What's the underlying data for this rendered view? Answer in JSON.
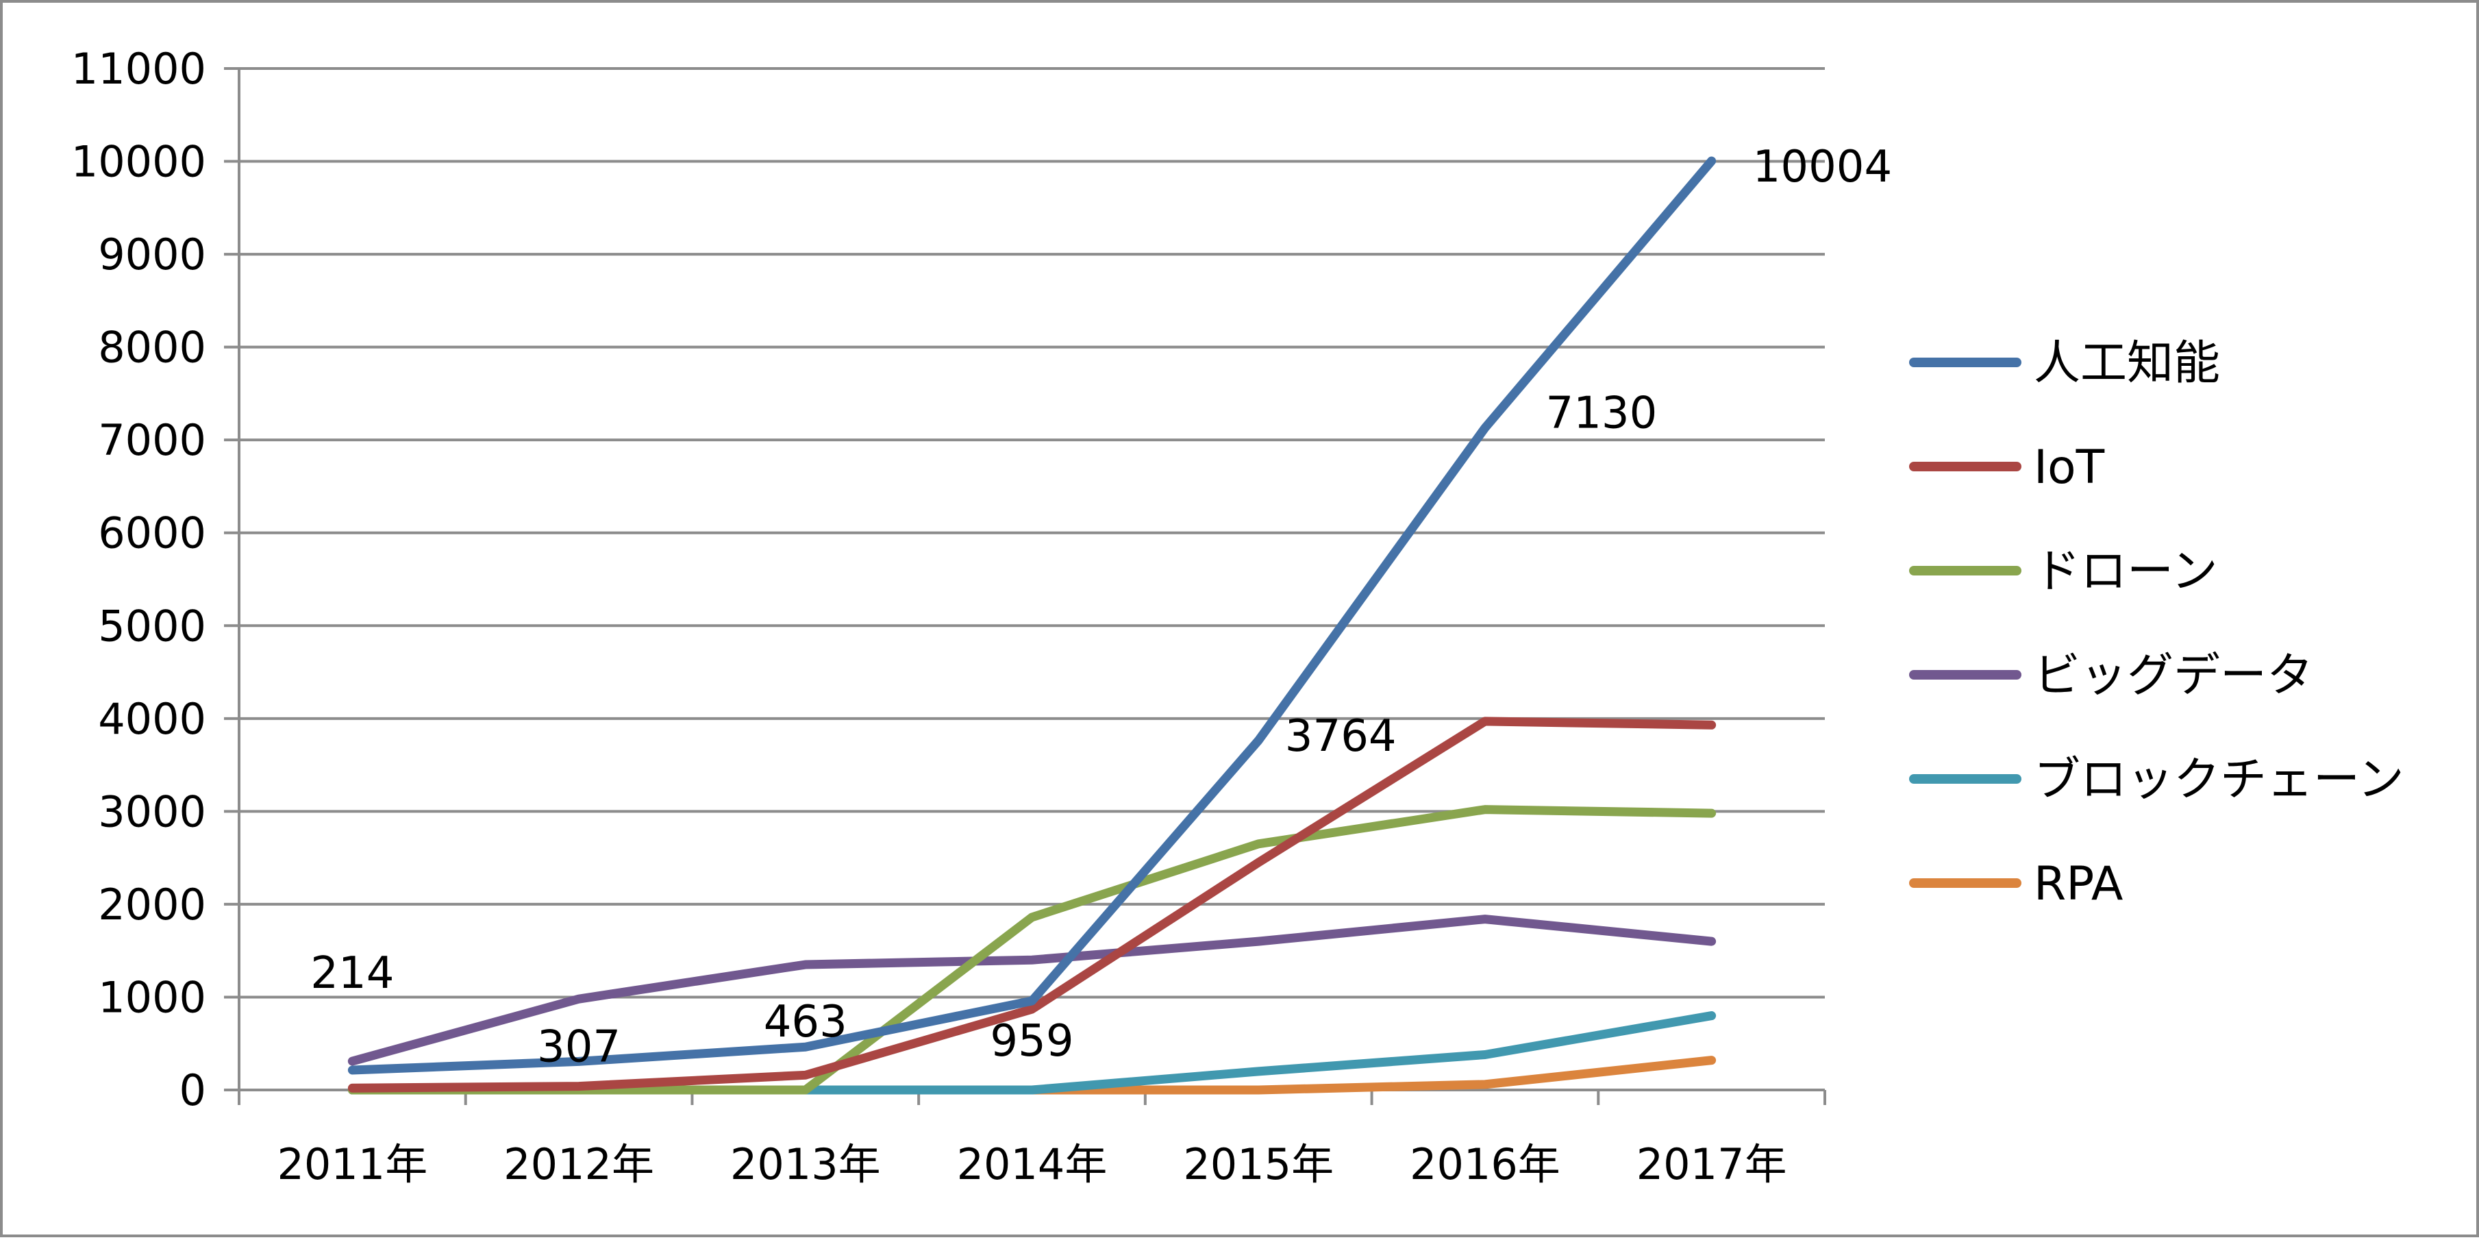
{
  "chart_data": {
    "type": "line",
    "title": "",
    "xlabel": "",
    "ylabel": "",
    "categories": [
      "2011年",
      "2012年",
      "2013年",
      "2014年",
      "2015年",
      "2016年",
      "2017年"
    ],
    "ylim": [
      0,
      11000
    ],
    "yticks": [
      0,
      1000,
      2000,
      3000,
      4000,
      5000,
      6000,
      7000,
      8000,
      9000,
      10000,
      11000
    ],
    "grid": true,
    "legend_position": "right",
    "series": [
      {
        "name": "人工知能",
        "color": "#4572a7",
        "values": [
          214,
          307,
          463,
          959,
          3764,
          7130,
          10004
        ]
      },
      {
        "name": "IoT",
        "color": "#aa4643",
        "values": [
          20,
          40,
          160,
          870,
          2450,
          3970,
          3930
        ]
      },
      {
        "name": "ドローン",
        "color": "#89a54e",
        "values": [
          0,
          0,
          0,
          1860,
          2650,
          3020,
          2980
        ]
      },
      {
        "name": "ビッグデータ",
        "color": "#71588f",
        "values": [
          310,
          980,
          1350,
          1400,
          1600,
          1840,
          1600
        ]
      },
      {
        "name": "ブロックチェーン",
        "color": "#4198af",
        "values": [
          0,
          0,
          0,
          0,
          200,
          380,
          800
        ]
      },
      {
        "name": "RPA",
        "color": "#db843d",
        "values": [
          0,
          0,
          0,
          0,
          0,
          60,
          320
        ]
      }
    ],
    "data_labels": [
      {
        "series": "人工知能",
        "category": "2011年",
        "text": "214"
      },
      {
        "series": "人工知能",
        "category": "2012年",
        "text": "307"
      },
      {
        "series": "人工知能",
        "category": "2013年",
        "text": "463"
      },
      {
        "series": "人工知能",
        "category": "2014年",
        "text": "959"
      },
      {
        "series": "人工知能",
        "category": "2015年",
        "text": "3764"
      },
      {
        "series": "人工知能",
        "category": "2016年",
        "text": "7130"
      },
      {
        "series": "人工知能",
        "category": "2017年",
        "text": "10004"
      }
    ]
  }
}
